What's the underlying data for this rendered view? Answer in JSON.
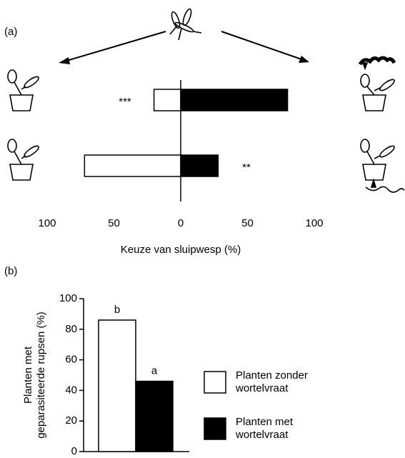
{
  "chart_data": [
    {
      "type": "diverging-bar",
      "panel_label": "(a)",
      "x_label": "Keuze van sluipwesp (%)",
      "categories": [
        null,
        null
      ],
      "series": [
        {
          "color": "#ffffff",
          "values": [
            -20,
            -72
          ]
        },
        {
          "color": "#000000",
          "values": [
            80,
            28
          ]
        }
      ],
      "significance": [
        "***",
        "**"
      ],
      "xlim": [
        -100,
        100
      ],
      "xticks": [
        {
          "value": -100,
          "label": "100"
        },
        {
          "value": -50,
          "label": "50"
        },
        0,
        50,
        100
      ]
    },
    {
      "type": "bar",
      "panel_label": "(b)",
      "y_label": [
        "Planten met",
        "geparasiteerde rupsen (%)"
      ],
      "categories": [
        null
      ],
      "series": [
        {
          "name": "Planten zonder wortelvraat",
          "color": "#ffffff",
          "values": [
            86
          ],
          "letter": "b"
        },
        {
          "name": "Planten met wortelvraat",
          "color": "#000000",
          "values": [
            46
          ],
          "letter": "a"
        }
      ],
      "ylim": [
        0,
        100
      ],
      "yticks": [
        0,
        20,
        40,
        60,
        80,
        100
      ]
    }
  ]
}
